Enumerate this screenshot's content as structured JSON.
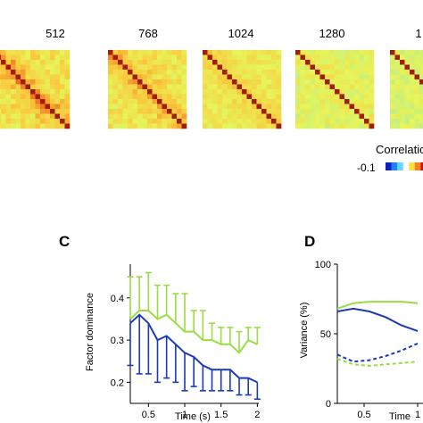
{
  "matrix_titles": [
    "512",
    "768",
    "1024",
    "1280",
    "1"
  ],
  "colorbar": {
    "label": "Correlatio",
    "min_label": "-0.1"
  },
  "panels": {
    "c": "C",
    "d": "D"
  },
  "colors": {
    "green": "#99dd44",
    "blue": "#1a3ab8"
  },
  "chart_data": [
    {
      "type": "heatmap",
      "panels": [
        "512",
        "768",
        "1024",
        "1280",
        "1"
      ],
      "colorbar_label": "Correlatio",
      "colorbar_min": -0.1
    },
    {
      "type": "line",
      "panel": "C",
      "xlabel": "Time (s)",
      "ylabel": "Factor dominance",
      "xlim": [
        0.25,
        2.0
      ],
      "ylim": [
        0.15,
        0.48
      ],
      "xticks": [
        "0.5",
        "1",
        "1.5",
        "2"
      ],
      "yticks": [
        "0.2",
        "0.3",
        "0.4"
      ],
      "x": [
        0.25,
        0.375,
        0.5,
        0.625,
        0.75,
        0.875,
        1.0,
        1.125,
        1.25,
        1.375,
        1.5,
        1.625,
        1.75,
        1.875,
        2.0
      ],
      "series": [
        {
          "color": "#99dd44",
          "values": [
            0.35,
            0.37,
            0.37,
            0.35,
            0.36,
            0.34,
            0.32,
            0.32,
            0.3,
            0.3,
            0.29,
            0.29,
            0.27,
            0.3,
            0.29
          ],
          "error_up": [
            0.45,
            0.45,
            0.46,
            0.43,
            0.43,
            0.41,
            0.41,
            0.37,
            0.37,
            0.34,
            0.33,
            0.33,
            0.32,
            0.33,
            0.33
          ]
        },
        {
          "color": "#1a3ab8",
          "values": [
            0.34,
            0.36,
            0.34,
            0.3,
            0.31,
            0.29,
            0.27,
            0.26,
            0.24,
            0.23,
            0.23,
            0.23,
            0.21,
            0.21,
            0.2
          ],
          "error_low": [
            0.24,
            0.22,
            0.22,
            0.2,
            0.21,
            0.2,
            0.18,
            0.19,
            0.18,
            0.18,
            0.18,
            0.18,
            0.17,
            0.17,
            0.16
          ]
        }
      ]
    },
    {
      "type": "line",
      "panel": "D",
      "ylabel": "Variance (%)",
      "xlabel": "Time",
      "yticks": [
        "100",
        "50",
        "0"
      ],
      "xticks": [
        "0.5",
        "1"
      ],
      "ylim": [
        0,
        100
      ],
      "x": [
        0.25,
        0.4,
        0.55,
        0.7,
        0.85,
        1.0
      ],
      "series": [
        {
          "color": "#99dd44",
          "style": "solid",
          "values": [
            68,
            72,
            73,
            73,
            73,
            72
          ]
        },
        {
          "color": "#1a3ab8",
          "style": "solid",
          "values": [
            66,
            68,
            66,
            62,
            56,
            52
          ]
        },
        {
          "color": "#1a3ab8",
          "style": "dashed",
          "values": [
            35,
            30,
            31,
            34,
            38,
            43
          ]
        },
        {
          "color": "#99dd44",
          "style": "dashed",
          "values": [
            32,
            28,
            27,
            28,
            29,
            30
          ]
        }
      ]
    }
  ]
}
